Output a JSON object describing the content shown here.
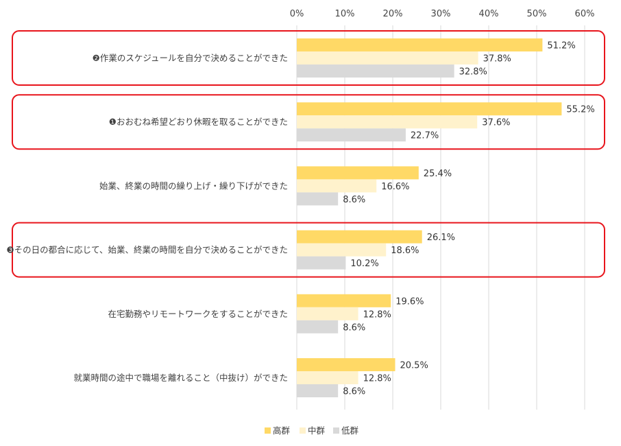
{
  "chart_data": {
    "type": "bar",
    "orientation": "horizontal",
    "xlim": [
      0,
      60
    ],
    "ticks": [
      "0%",
      "10%",
      "20%",
      "30%",
      "40%",
      "50%",
      "60%"
    ],
    "value_suffix": "%",
    "grid": "vertical",
    "legend_position": "bottom",
    "categories": [
      "❷作業のスケジュールを自分で決めることができた",
      "❶おおむね希望どおり休暇を取ることができた",
      "始業、終業の時間の繰り上げ・繰り下げができた",
      "❸その日の都合に応じて、始業、終業の時間を自分で決めることができた",
      "在宅勤務やリモートワークをすることができた",
      "就業時間の途中で職場を離れること（中抜け）ができた"
    ],
    "highlighted": [
      true,
      true,
      false,
      true,
      false,
      false
    ],
    "series": [
      {
        "name": "高群",
        "color": "#FFD966",
        "values": [
          51.2,
          55.2,
          25.4,
          26.1,
          19.6,
          20.5
        ]
      },
      {
        "name": "中群",
        "color": "#FFF2CC",
        "values": [
          37.8,
          37.6,
          16.6,
          18.6,
          12.8,
          12.8
        ]
      },
      {
        "name": "低群",
        "color": "#D9D9D9",
        "values": [
          32.8,
          22.7,
          8.6,
          10.2,
          8.6,
          8.6
        ]
      }
    ],
    "highlight_color": "#E8141B",
    "grid_color": "#D9D9D9"
  }
}
